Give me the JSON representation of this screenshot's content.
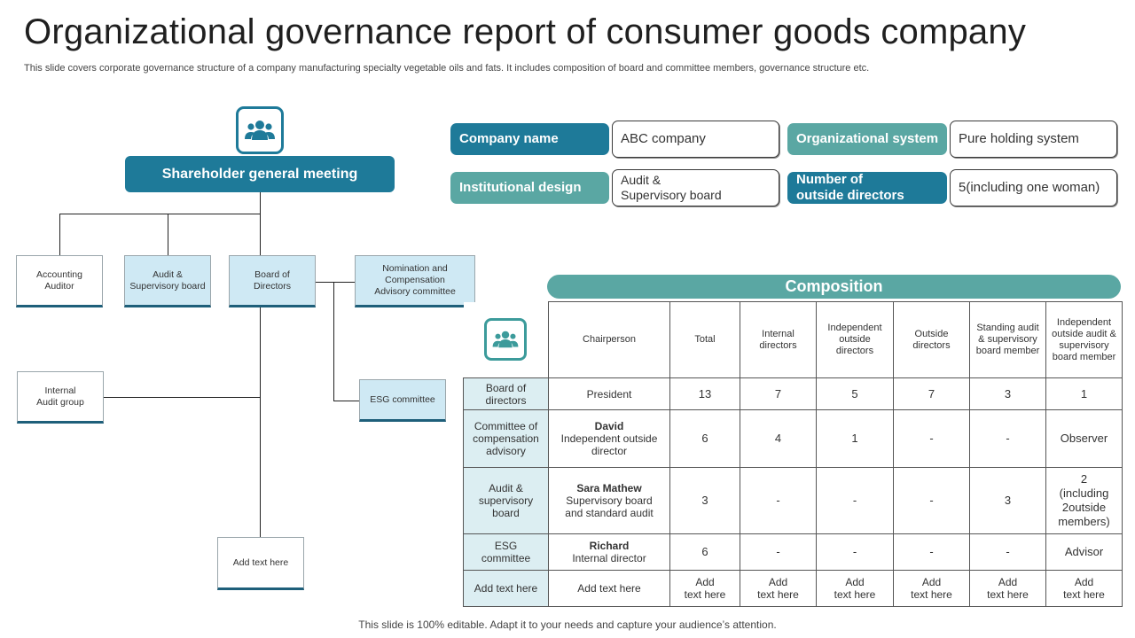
{
  "title": "Organizational governance report of consumer goods company",
  "subtitle": "This slide covers corporate governance structure of a company manufacturing specialty vegetable oils and fats. It includes composition of board and committee members, governance structure etc.",
  "footer": "This slide is 100% editable. Adapt it to your needs and capture your audience’s attention.",
  "icons": {
    "org": "people-group-icon",
    "composition": "people-group-icon"
  },
  "colors": {
    "primary": "#1e7a99",
    "teal": "#5aa7a3",
    "light": "#cfe9f4"
  },
  "org": {
    "root": "Shareholder general meeting",
    "accounting_auditor": "Accounting\nAuditor",
    "audit_board": "Audit &\nSupervisory board",
    "board_directors": "Board of\nDirectors",
    "nomination": "Nomination  and\nCompensation\nAdvisory committee",
    "internal_audit": "Internal\nAudit group",
    "esg": "ESG  committee",
    "add_text": "Add text here"
  },
  "info": {
    "company_name_label": "Company name",
    "company_name_value": "ABC company",
    "org_system_label": "Organizational system",
    "org_system_value": "Pure holding system",
    "inst_design_label": "Institutional design",
    "inst_design_value": "Audit &\nSupervisory board",
    "outside_dir_label": "Number of\noutside directors",
    "outside_dir_value": "5(including one woman)"
  },
  "composition": {
    "title": "Composition",
    "headers": [
      "Chairperson",
      "Total",
      "Internal directors",
      "Independent outside directors",
      "Outside directors",
      "Standing audit & supervisory board member",
      "Independent outside audit & supervisory board member"
    ],
    "rows": [
      {
        "name": "Board of\ndirectors",
        "chair_bold": "",
        "chair": "President",
        "cells": [
          "13",
          "7",
          "5",
          "7",
          "3",
          "1"
        ]
      },
      {
        "name": "Committee of\ncompensation\nadvisory",
        "chair_bold": "David",
        "chair": "Independent outside\ndirector",
        "cells": [
          "6",
          "4",
          "1",
          "-",
          "-",
          "Observer"
        ]
      },
      {
        "name": "Audit &\nsupervisory\nboard",
        "chair_bold": "Sara Mathew",
        "chair": "Supervisory board\nand standard audit",
        "cells": [
          "3",
          "-",
          "-",
          "-",
          "3",
          "2\n(including\n2outside\nmembers)"
        ]
      },
      {
        "name": "ESG\ncommittee",
        "chair_bold": "Richard",
        "chair": "Internal director",
        "cells": [
          "6",
          "-",
          "-",
          "-",
          "-",
          "Advisor"
        ]
      },
      {
        "name": "Add text here",
        "chair_bold": "",
        "chair": "Add text here",
        "cells": [
          "Add\ntext here",
          "Add\ntext here",
          "Add\ntext here",
          "Add\ntext here",
          "Add\ntext here",
          "Add\ntext here"
        ]
      }
    ]
  }
}
